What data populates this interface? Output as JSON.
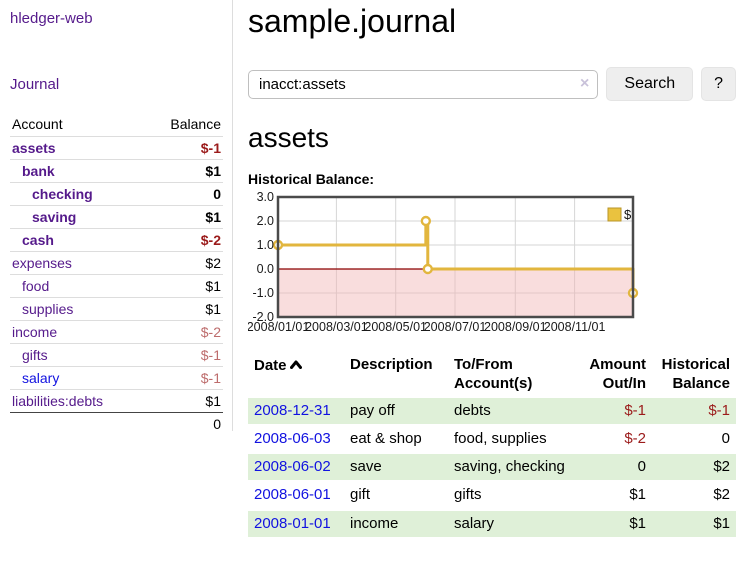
{
  "colors": {
    "visited_link_purple": "#551a8b",
    "link_blue": "#1212e0",
    "negative_red": "#9b1b1b",
    "negative_faded_red": "#bd6c6c",
    "row_green": "#dff0d8",
    "chart_line_gold": "#e2b63e",
    "chart_legend_fill": "#eac23f",
    "chart_negative_fill": "#f2b4b4",
    "chart_zero_line": "#8b0000",
    "chart_border": "#4a4a4a"
  },
  "sidebar": {
    "app_title": "hledger-web",
    "nav_journal": "Journal",
    "accounts_table": {
      "col_account": "Account",
      "col_balance": "Balance",
      "rows": [
        {
          "name": "assets",
          "depth": 0,
          "bold": true,
          "link": "purple",
          "balance": "$-1",
          "balance_style": "neg-bold"
        },
        {
          "name": "bank",
          "depth": 1,
          "bold": true,
          "link": "purple",
          "balance": "$1",
          "balance_style": "bold"
        },
        {
          "name": "checking",
          "depth": 2,
          "bold": true,
          "link": "purple",
          "balance": "0",
          "balance_style": "bold"
        },
        {
          "name": "saving",
          "depth": 2,
          "bold": true,
          "link": "purple",
          "balance": "$1",
          "balance_style": "bold"
        },
        {
          "name": "cash",
          "depth": 1,
          "bold": true,
          "link": "purple",
          "balance": "$-2",
          "balance_style": "neg-bold"
        },
        {
          "name": "expenses",
          "depth": 0,
          "bold": false,
          "link": "purple",
          "balance": "$2",
          "balance_style": "plain"
        },
        {
          "name": "food",
          "depth": 1,
          "bold": false,
          "link": "purple",
          "balance": "$1",
          "balance_style": "plain"
        },
        {
          "name": "supplies",
          "depth": 1,
          "bold": false,
          "link": "purple",
          "balance": "$1",
          "balance_style": "plain"
        },
        {
          "name": "income",
          "depth": 0,
          "bold": false,
          "link": "purple",
          "balance": "$-2",
          "balance_style": "neg-faded"
        },
        {
          "name": "gifts",
          "depth": 1,
          "bold": false,
          "link": "purple",
          "balance": "$-1",
          "balance_style": "neg-faded"
        },
        {
          "name": "salary",
          "depth": 1,
          "bold": false,
          "link": "blue",
          "balance": "$-1",
          "balance_style": "neg-faded"
        },
        {
          "name": "liabilities:debts",
          "depth": 0,
          "bold": false,
          "link": "purple",
          "balance": "$1",
          "balance_style": "plain"
        }
      ],
      "total": "0"
    }
  },
  "header": {
    "title": "sample.journal",
    "search": {
      "value": "inacct:assets",
      "clear_icon": "×",
      "search_button": "Search",
      "help_button": "?"
    }
  },
  "account_page": {
    "heading": "assets",
    "chart_title": "Historical Balance:"
  },
  "chart_data": {
    "type": "line",
    "step": true,
    "title": "Historical Balance:",
    "legend": {
      "label": "$",
      "position": "top-right"
    },
    "series": [
      {
        "name": "$",
        "color": "#e2b63e",
        "points": [
          {
            "date": "2008-01-01",
            "value": 1
          },
          {
            "date": "2008-06-01",
            "value": 2
          },
          {
            "date": "2008-06-03",
            "value": 0
          },
          {
            "date": "2008-12-31",
            "value": -1
          }
        ]
      }
    ],
    "x_range": [
      "2008-01-01",
      "2008-12-31"
    ],
    "x_tick_labels": [
      "2008/01/01",
      "2008/03/01",
      "2008/05/01",
      "2008/07/01",
      "2008/09/01",
      "2008/11/01"
    ],
    "x_tick_dates": [
      "2008-01-01",
      "2008-03-01",
      "2008-05-01",
      "2008-07-01",
      "2008-09-01",
      "2008-11-01"
    ],
    "y_ticks": [
      3.0,
      2.0,
      1.0,
      0.0,
      -1.0,
      -2.0
    ],
    "ylim": [
      -2,
      3
    ],
    "grid": true,
    "negative_region_shaded": true
  },
  "register": {
    "headers": {
      "date": "Date",
      "description": "Description",
      "tofrom": "To/From Account(s)",
      "amount": "Amount Out/In",
      "balance": "Historical Balance"
    },
    "sort": {
      "column": "date",
      "direction": "asc"
    },
    "rows": [
      {
        "date": "2008-12-31",
        "description": "pay off",
        "tofrom": "debts",
        "amount": "$-1",
        "balance": "$-1"
      },
      {
        "date": "2008-06-03",
        "description": "eat & shop",
        "tofrom": "food, supplies",
        "amount": "$-2",
        "balance": "0"
      },
      {
        "date": "2008-06-02",
        "description": "save",
        "tofrom": "saving, checking",
        "amount": "0",
        "balance": "$2"
      },
      {
        "date": "2008-06-01",
        "description": "gift",
        "tofrom": "gifts",
        "amount": "$1",
        "balance": "$2"
      },
      {
        "date": "2008-01-01",
        "description": "income",
        "tofrom": "salary",
        "amount": "$1",
        "balance": "$1"
      }
    ]
  }
}
